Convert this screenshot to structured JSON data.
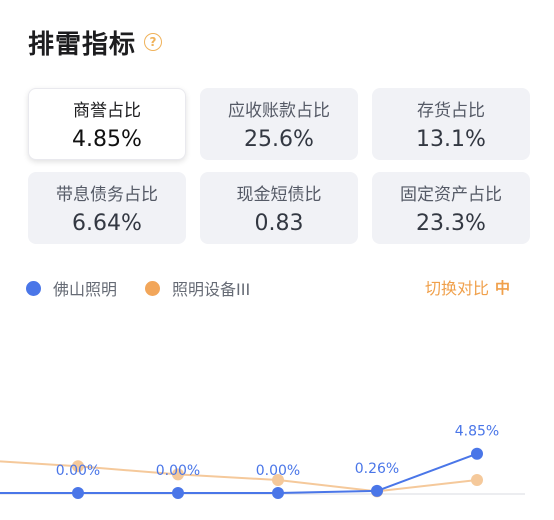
{
  "header": {
    "title": "排雷指标",
    "help_icon": "?"
  },
  "metrics": [
    {
      "label": "商誉占比",
      "value": "4.85%",
      "active": true
    },
    {
      "label": "应收账款占比",
      "value": "25.6%"
    },
    {
      "label": "存货占比",
      "value": "13.1%"
    },
    {
      "label": "带息债务占比",
      "value": "6.64%"
    },
    {
      "label": "现金短债比",
      "value": "0.83"
    },
    {
      "label": "固定资产占比",
      "value": "23.3%"
    }
  ],
  "legend": [
    {
      "name": "佛山照明",
      "color": "#4a76e8"
    },
    {
      "name": "照明设备III",
      "color": "#f2a65a"
    }
  ],
  "switch": {
    "label": "切换对比",
    "icon": "中"
  },
  "chart_data": {
    "type": "line",
    "x": [
      "",
      "",
      "",
      "",
      "",
      ""
    ],
    "series": [
      {
        "name": "佛山照明",
        "color": "#4a76e8",
        "values": [
          0.0,
          0.0,
          0.0,
          0.0,
          0.26,
          4.85
        ],
        "labels": [
          "",
          "0.00%",
          "0.00%",
          "0.00%",
          "0.26%",
          "4.85%"
        ]
      },
      {
        "name": "照明设备III",
        "color": "#f5c99b",
        "values": [
          null,
          3.3,
          2.3,
          1.6,
          0.2,
          1.6
        ]
      }
    ]
  }
}
